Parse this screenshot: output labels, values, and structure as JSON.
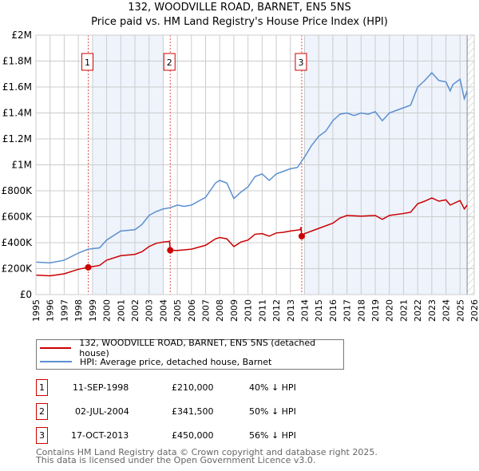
{
  "title": "132, WOODVILLE ROAD, BARNET, EN5 5NS",
  "subtitle": "Price paid vs. HM Land Registry's House Price Index (HPI)",
  "legend": {
    "red": "132, WOODVILLE ROAD, BARNET, EN5 5NS (detached house)",
    "blue": "HPI: Average price, detached house, Barnet"
  },
  "sales": [
    {
      "n": "1",
      "date": "11-SEP-1998",
      "price": "£210,000",
      "hpi": "40% ↓ HPI"
    },
    {
      "n": "2",
      "date": "02-JUL-2004",
      "price": "£341,500",
      "hpi": "50% ↓ HPI"
    },
    {
      "n": "3",
      "date": "17-OCT-2013",
      "price": "£450,000",
      "hpi": "56% ↓ HPI"
    }
  ],
  "footer": {
    "line1": "Contains HM Land Registry data © Crown copyright and database right 2025.",
    "line2": "This data is licensed under the Open Government Licence v3.0."
  },
  "colors": {
    "red": "#cc0000",
    "blue": "#5b8fd0",
    "shade": "#eef3fc"
  },
  "chart_data": {
    "type": "line",
    "xlim": [
      1995,
      2026
    ],
    "ylim": [
      0,
      2000000
    ],
    "yticks": [
      {
        "v": 0,
        "l": "£0"
      },
      {
        "v": 200000,
        "l": "£200K"
      },
      {
        "v": 400000,
        "l": "£400K"
      },
      {
        "v": 600000,
        "l": "£600K"
      },
      {
        "v": 800000,
        "l": "£800K"
      },
      {
        "v": 1000000,
        "l": "£1M"
      },
      {
        "v": 1200000,
        "l": "£1.2M"
      },
      {
        "v": 1400000,
        "l": "£1.4M"
      },
      {
        "v": 1600000,
        "l": "£1.6M"
      },
      {
        "v": 1800000,
        "l": "£1.8M"
      },
      {
        "v": 2000000,
        "l": "£2M"
      }
    ],
    "xticks": [
      "1995",
      "1996",
      "1997",
      "1998",
      "1999",
      "2000",
      "2001",
      "2002",
      "2003",
      "2004",
      "2005",
      "2006",
      "2007",
      "2008",
      "2009",
      "2010",
      "2011",
      "2012",
      "2013",
      "2014",
      "2015",
      "2016",
      "2017",
      "2018",
      "2019",
      "2020",
      "2021",
      "2022",
      "2023",
      "2024",
      "2025",
      "2026"
    ],
    "shaded": [
      [
        1999,
        2004
      ],
      [
        2014,
        2025.5
      ]
    ],
    "hatched_from": 2025.5,
    "sale_points": [
      {
        "n": "1",
        "x": 1998.7,
        "y": 210000
      },
      {
        "n": "2",
        "x": 2004.5,
        "y": 341500
      },
      {
        "n": "3",
        "x": 2013.8,
        "y": 450000
      }
    ],
    "series": [
      {
        "name": "HPI: Average price, detached house, Barnet",
        "color": "#5b8fd0",
        "x": [
          1995,
          1996,
          1997,
          1998,
          1998.7,
          1999.5,
          2000,
          2001,
          2002,
          2002.5,
          2003,
          2003.5,
          2004,
          2004.5,
          2005,
          2005.5,
          2006,
          2007,
          2007.7,
          2008,
          2008.5,
          2009,
          2009.5,
          2010,
          2010.5,
          2011,
          2011.5,
          2012,
          2012.5,
          2013,
          2013.5,
          2013.8,
          2014,
          2014.5,
          2015,
          2015.5,
          2016,
          2016.5,
          2017,
          2017.5,
          2018,
          2018.5,
          2019,
          2019.5,
          2020,
          2020.5,
          2021,
          2021.5,
          2022,
          2022.5,
          2023,
          2023.5,
          2024,
          2024.3,
          2024.5,
          2025,
          2025.3,
          2025.5
        ],
        "y": [
          250000,
          245000,
          265000,
          320000,
          350000,
          360000,
          420000,
          490000,
          500000,
          540000,
          610000,
          640000,
          660000,
          670000,
          690000,
          680000,
          690000,
          750000,
          860000,
          880000,
          860000,
          740000,
          790000,
          830000,
          910000,
          930000,
          880000,
          930000,
          950000,
          970000,
          980000,
          1030000,
          1060000,
          1150000,
          1220000,
          1260000,
          1340000,
          1390000,
          1400000,
          1380000,
          1400000,
          1390000,
          1410000,
          1340000,
          1400000,
          1420000,
          1440000,
          1460000,
          1600000,
          1650000,
          1710000,
          1650000,
          1640000,
          1570000,
          1620000,
          1660000,
          1510000,
          1570000
        ]
      },
      {
        "name": "132, WOODVILLE ROAD, BARNET, EN5 5NS (detached house)",
        "color": "#cc0000",
        "x": [
          1995,
          1996,
          1997,
          1998,
          1998.7,
          1999.5,
          2000,
          2001,
          2002,
          2002.5,
          2003,
          2003.5,
          2004,
          2004.45,
          2004.5,
          2005,
          2006,
          2007,
          2007.7,
          2008,
          2008.5,
          2009,
          2009.5,
          2010,
          2010.5,
          2011,
          2011.5,
          2012,
          2012.5,
          2013,
          2013.7,
          2013.75,
          2013.8,
          2014,
          2015,
          2016,
          2016.5,
          2017,
          2018,
          2019,
          2019.5,
          2020,
          2021,
          2021.5,
          2022,
          2022.5,
          2023,
          2023.5,
          2024,
          2024.3,
          2025,
          2025.3,
          2025.5
        ],
        "y": [
          150000,
          145000,
          160000,
          195000,
          210000,
          225000,
          265000,
          300000,
          310000,
          330000,
          370000,
          395000,
          405000,
          410000,
          341500,
          340000,
          350000,
          380000,
          430000,
          440000,
          430000,
          370000,
          405000,
          420000,
          465000,
          470000,
          450000,
          475000,
          480000,
          490000,
          500000,
          520000,
          450000,
          470000,
          510000,
          550000,
          590000,
          610000,
          605000,
          610000,
          580000,
          610000,
          625000,
          635000,
          700000,
          720000,
          745000,
          720000,
          730000,
          690000,
          725000,
          660000,
          690000
        ]
      }
    ]
  }
}
